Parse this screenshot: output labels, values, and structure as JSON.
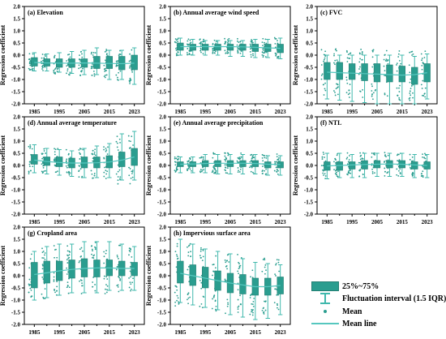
{
  "chart_data": [
    {
      "panel_label": "(a) Elevation",
      "type": "box",
      "y_label": "Regression coefficient",
      "ylim": [
        -2.0,
        2.0
      ],
      "x_tick_labels": [
        "1985",
        "1995",
        "2005",
        "2015",
        "2023"
      ],
      "boxes": [
        {
          "q1": -0.45,
          "median": -0.3,
          "q3": -0.1,
          "whisker_low": -0.65,
          "whisker_high": 0.1,
          "mean": -0.3
        },
        {
          "q1": -0.45,
          "median": -0.3,
          "q3": -0.15,
          "whisker_low": -0.65,
          "whisker_high": 0.05,
          "mean": -0.32
        },
        {
          "q1": -0.5,
          "median": -0.35,
          "q3": -0.15,
          "whisker_low": -0.7,
          "whisker_high": 0.1,
          "mean": -0.33
        },
        {
          "q1": -0.5,
          "median": -0.35,
          "q3": -0.15,
          "whisker_low": -0.75,
          "whisker_high": 0.15,
          "mean": -0.33
        },
        {
          "q1": -0.5,
          "median": -0.35,
          "q3": -0.15,
          "whisker_low": -0.8,
          "whisker_high": 0.2,
          "mean": -0.32
        },
        {
          "q1": -0.55,
          "median": -0.35,
          "q3": -0.05,
          "whisker_low": -0.8,
          "whisker_high": 0.3,
          "mean": -0.33
        },
        {
          "q1": -0.55,
          "median": -0.35,
          "q3": -0.05,
          "whisker_low": -1.0,
          "whisker_high": 0.2,
          "mean": -0.34
        },
        {
          "q1": -0.6,
          "median": -0.4,
          "q3": -0.05,
          "whisker_low": -1.0,
          "whisker_high": 0.2,
          "mean": -0.35
        },
        {
          "q1": -0.6,
          "median": -0.4,
          "q3": 0.0,
          "whisker_low": -1.2,
          "whisker_high": 0.3,
          "mean": -0.33
        }
      ]
    },
    {
      "panel_label": "(b) Annual average wind speed",
      "type": "box",
      "y_label": "Regression coefficient",
      "ylim": [
        -2.0,
        2.0
      ],
      "x_tick_labels": [
        "1985",
        "1995",
        "2005",
        "2015",
        "2023"
      ],
      "boxes": [
        {
          "q1": 0.2,
          "median": 0.35,
          "q3": 0.5,
          "whisker_low": 0.0,
          "whisker_high": 0.7,
          "mean": 0.35
        },
        {
          "q1": 0.2,
          "median": 0.35,
          "q3": 0.45,
          "whisker_low": 0.0,
          "whisker_high": 0.65,
          "mean": 0.35
        },
        {
          "q1": 0.2,
          "median": 0.35,
          "q3": 0.45,
          "whisker_low": 0.0,
          "whisker_high": 0.6,
          "mean": 0.35
        },
        {
          "q1": 0.2,
          "median": 0.35,
          "q3": 0.45,
          "whisker_low": 0.0,
          "whisker_high": 0.6,
          "mean": 0.35
        },
        {
          "q1": 0.2,
          "median": 0.35,
          "q3": 0.45,
          "whisker_low": -0.05,
          "whisker_high": 0.6,
          "mean": 0.35
        },
        {
          "q1": 0.2,
          "median": 0.35,
          "q3": 0.45,
          "whisker_low": -0.05,
          "whisker_high": 0.6,
          "mean": 0.34
        },
        {
          "q1": 0.15,
          "median": 0.3,
          "q3": 0.45,
          "whisker_low": -0.1,
          "whisker_high": 0.65,
          "mean": 0.32
        },
        {
          "q1": 0.15,
          "median": 0.3,
          "q3": 0.45,
          "whisker_low": -0.1,
          "whisker_high": 0.65,
          "mean": 0.3
        },
        {
          "q1": 0.1,
          "median": 0.3,
          "q3": 0.45,
          "whisker_low": -0.15,
          "whisker_high": 0.7,
          "mean": 0.28
        }
      ]
    },
    {
      "panel_label": "(c) FVC",
      "type": "box",
      "y_label": "Regression coefficient",
      "ylim": [
        -2.0,
        2.0
      ],
      "x_tick_labels": [
        "1985",
        "1995",
        "2005",
        "2015",
        "2023"
      ],
      "boxes": [
        {
          "q1": -1.0,
          "median": -0.7,
          "q3": -0.3,
          "whisker_low": -1.8,
          "whisker_high": 0.0,
          "mean": -0.7
        },
        {
          "q1": -1.0,
          "median": -0.7,
          "q3": -0.3,
          "whisker_low": -1.85,
          "whisker_high": 0.0,
          "mean": -0.72
        },
        {
          "q1": -1.0,
          "median": -0.75,
          "q3": -0.35,
          "whisker_low": -1.9,
          "whisker_high": 0.0,
          "mean": -0.74
        },
        {
          "q1": -1.05,
          "median": -0.75,
          "q3": -0.35,
          "whisker_low": -1.95,
          "whisker_high": 0.0,
          "mean": -0.76
        },
        {
          "q1": -1.1,
          "median": -0.8,
          "q3": -0.35,
          "whisker_low": -2.0,
          "whisker_high": 0.0,
          "mean": -0.78
        },
        {
          "q1": -1.1,
          "median": -0.8,
          "q3": -0.4,
          "whisker_low": -2.0,
          "whisker_high": 0.0,
          "mean": -0.8
        },
        {
          "q1": -1.1,
          "median": -0.85,
          "q3": -0.45,
          "whisker_low": -2.0,
          "whisker_high": 0.0,
          "mean": -0.82
        },
        {
          "q1": -1.2,
          "median": -0.85,
          "q3": -0.5,
          "whisker_low": -2.0,
          "whisker_high": -0.05,
          "mean": -0.8
        },
        {
          "q1": -1.1,
          "median": -0.75,
          "q3": -0.35,
          "whisker_low": -1.8,
          "whisker_high": 0.05,
          "mean": -0.72
        }
      ]
    },
    {
      "panel_label": "(d) Annual average temperature",
      "type": "box",
      "y_label": "Regression coefficient",
      "ylim": [
        -2.0,
        2.0
      ],
      "x_tick_labels": [
        "1985",
        "1995",
        "2005",
        "2015",
        "2023"
      ],
      "boxes": [
        {
          "q1": 0.05,
          "median": 0.25,
          "q3": 0.45,
          "whisker_low": -0.3,
          "whisker_high": 0.85,
          "mean": 0.22
        },
        {
          "q1": 0.0,
          "median": 0.15,
          "q3": 0.35,
          "whisker_low": -0.35,
          "whisker_high": 0.7,
          "mean": 0.16
        },
        {
          "q1": -0.05,
          "median": 0.15,
          "q3": 0.35,
          "whisker_low": -0.4,
          "whisker_high": 0.65,
          "mean": 0.12
        },
        {
          "q1": -0.1,
          "median": 0.1,
          "q3": 0.3,
          "whisker_low": -0.45,
          "whisker_high": 0.6,
          "mean": 0.1
        },
        {
          "q1": -0.1,
          "median": 0.1,
          "q3": 0.35,
          "whisker_low": -0.5,
          "whisker_high": 0.7,
          "mean": 0.1
        },
        {
          "q1": -0.1,
          "median": 0.1,
          "q3": 0.35,
          "whisker_low": -0.5,
          "whisker_high": 0.8,
          "mean": 0.11
        },
        {
          "q1": -0.1,
          "median": 0.15,
          "q3": 0.4,
          "whisker_low": -0.5,
          "whisker_high": 0.9,
          "mean": 0.14
        },
        {
          "q1": -0.05,
          "median": 0.2,
          "q3": 0.55,
          "whisker_low": -0.6,
          "whisker_high": 1.3,
          "mean": 0.22
        },
        {
          "q1": 0.0,
          "median": 0.3,
          "q3": 0.7,
          "whisker_low": -0.6,
          "whisker_high": 1.4,
          "mean": 0.35
        }
      ]
    },
    {
      "panel_label": "(e) Annual average precipitation",
      "type": "box",
      "y_label": "Regression coefficient",
      "ylim": [
        -2.0,
        2.0
      ],
      "x_tick_labels": [
        "1985",
        "1995",
        "2005",
        "2015",
        "2023"
      ],
      "boxes": [
        {
          "q1": -0.05,
          "median": 0.05,
          "q3": 0.15,
          "whisker_low": -0.3,
          "whisker_high": 0.35,
          "mean": 0.05
        },
        {
          "q1": -0.05,
          "median": 0.05,
          "q3": 0.15,
          "whisker_low": -0.3,
          "whisker_high": 0.35,
          "mean": 0.06
        },
        {
          "q1": -0.05,
          "median": 0.1,
          "q3": 0.2,
          "whisker_low": -0.3,
          "whisker_high": 0.45,
          "mean": 0.08
        },
        {
          "q1": -0.05,
          "median": 0.1,
          "q3": 0.2,
          "whisker_low": -0.35,
          "whisker_high": 0.45,
          "mean": 0.09
        },
        {
          "q1": -0.05,
          "median": 0.1,
          "q3": 0.2,
          "whisker_low": -0.35,
          "whisker_high": 0.45,
          "mean": 0.09
        },
        {
          "q1": -0.05,
          "median": 0.1,
          "q3": 0.2,
          "whisker_low": -0.35,
          "whisker_high": 0.45,
          "mean": 0.09
        },
        {
          "q1": -0.05,
          "median": 0.05,
          "q3": 0.2,
          "whisker_low": -0.35,
          "whisker_high": 0.45,
          "mean": 0.08
        },
        {
          "q1": -0.1,
          "median": 0.05,
          "q3": 0.15,
          "whisker_low": -0.4,
          "whisker_high": 0.4,
          "mean": 0.05
        },
        {
          "q1": -0.1,
          "median": 0.05,
          "q3": 0.15,
          "whisker_low": -0.4,
          "whisker_high": 0.4,
          "mean": 0.04
        }
      ]
    },
    {
      "panel_label": "(f) NTL",
      "type": "box",
      "y_label": "Regression coefficient",
      "ylim": [
        -2.0,
        2.0
      ],
      "x_tick_labels": [
        "1985",
        "1995",
        "2005",
        "2015",
        "2023"
      ],
      "boxes": [
        {
          "q1": -0.2,
          "median": 0.0,
          "q3": 0.15,
          "whisker_low": -0.55,
          "whisker_high": 0.5,
          "mean": -0.02
        },
        {
          "q1": -0.2,
          "median": 0.0,
          "q3": 0.15,
          "whisker_low": -0.5,
          "whisker_high": 0.5,
          "mean": 0.0
        },
        {
          "q1": -0.15,
          "median": 0.05,
          "q3": 0.15,
          "whisker_low": -0.5,
          "whisker_high": 0.45,
          "mean": 0.02
        },
        {
          "q1": -0.15,
          "median": 0.05,
          "q3": 0.2,
          "whisker_low": -0.5,
          "whisker_high": 0.5,
          "mean": 0.04
        },
        {
          "q1": -0.1,
          "median": 0.05,
          "q3": 0.2,
          "whisker_low": -0.45,
          "whisker_high": 0.5,
          "mean": 0.05
        },
        {
          "q1": -0.1,
          "median": 0.05,
          "q3": 0.2,
          "whisker_low": -0.45,
          "whisker_high": 0.5,
          "mean": 0.06
        },
        {
          "q1": -0.1,
          "median": 0.05,
          "q3": 0.2,
          "whisker_low": -0.45,
          "whisker_high": 0.5,
          "mean": 0.05
        },
        {
          "q1": -0.15,
          "median": 0.0,
          "q3": 0.15,
          "whisker_low": -0.5,
          "whisker_high": 0.45,
          "mean": 0.02
        },
        {
          "q1": -0.15,
          "median": 0.0,
          "q3": 0.15,
          "whisker_low": -0.5,
          "whisker_high": 0.45,
          "mean": 0.0
        }
      ]
    },
    {
      "panel_label": "(g) Cropland area",
      "type": "box",
      "y_label": "Regression coefficient",
      "ylim": [
        -2.0,
        2.0
      ],
      "x_tick_labels": [
        "1985",
        "1995",
        "2005",
        "2015",
        "2023"
      ],
      "boxes": [
        {
          "q1": -0.5,
          "median": 0.05,
          "q3": 0.55,
          "whisker_low": -1.0,
          "whisker_high": 1.0,
          "mean": 0.05
        },
        {
          "q1": -0.3,
          "median": 0.15,
          "q3": 0.6,
          "whisker_low": -0.9,
          "whisker_high": 1.2,
          "mean": 0.12
        },
        {
          "q1": -0.2,
          "median": 0.2,
          "q3": 0.6,
          "whisker_low": -0.8,
          "whisker_high": 1.3,
          "mean": 0.2
        },
        {
          "q1": -0.1,
          "median": 0.25,
          "q3": 0.65,
          "whisker_low": -0.7,
          "whisker_high": 1.3,
          "mean": 0.26
        },
        {
          "q1": -0.05,
          "median": 0.3,
          "q3": 0.7,
          "whisker_low": -0.7,
          "whisker_high": 1.4,
          "mean": 0.3
        },
        {
          "q1": -0.05,
          "median": 0.3,
          "q3": 0.65,
          "whisker_low": -0.7,
          "whisker_high": 1.4,
          "mean": 0.32
        },
        {
          "q1": 0.0,
          "median": 0.3,
          "q3": 0.65,
          "whisker_low": -0.6,
          "whisker_high": 1.4,
          "mean": 0.32
        },
        {
          "q1": 0.0,
          "median": 0.3,
          "q3": 0.6,
          "whisker_low": -0.6,
          "whisker_high": 1.3,
          "mean": 0.3
        },
        {
          "q1": 0.0,
          "median": 0.3,
          "q3": 0.55,
          "whisker_low": -0.6,
          "whisker_high": 1.2,
          "mean": 0.3
        }
      ]
    },
    {
      "panel_label": "(h) Impervious surface area",
      "type": "box",
      "y_label": "Regression coefficient",
      "ylim": [
        -2.0,
        2.0
      ],
      "x_tick_labels": [
        "1985",
        "1995",
        "2005",
        "2015",
        "2023"
      ],
      "boxes": [
        {
          "q1": -0.3,
          "median": 0.1,
          "q3": 0.6,
          "whisker_low": -1.1,
          "whisker_high": 1.5,
          "mean": 0.1
        },
        {
          "q1": -0.4,
          "median": 0.0,
          "q3": 0.45,
          "whisker_low": -1.2,
          "whisker_high": 1.3,
          "mean": 0.0
        },
        {
          "q1": -0.5,
          "median": -0.1,
          "q3": 0.35,
          "whisker_low": -1.3,
          "whisker_high": 1.1,
          "mean": -0.1
        },
        {
          "q1": -0.6,
          "median": -0.2,
          "q3": 0.2,
          "whisker_low": -1.4,
          "whisker_high": 1.0,
          "mean": -0.2
        },
        {
          "q1": -0.7,
          "median": -0.3,
          "q3": 0.1,
          "whisker_low": -1.6,
          "whisker_high": 0.9,
          "mean": -0.3
        },
        {
          "q1": -0.75,
          "median": -0.35,
          "q3": 0.05,
          "whisker_low": -1.7,
          "whisker_high": 0.7,
          "mean": -0.38
        },
        {
          "q1": -0.8,
          "median": -0.45,
          "q3": -0.1,
          "whisker_low": -1.8,
          "whisker_high": 0.55,
          "mean": -0.45
        },
        {
          "q1": -0.8,
          "median": -0.45,
          "q3": -0.1,
          "whisker_low": -1.75,
          "whisker_high": 0.5,
          "mean": -0.45
        },
        {
          "q1": -0.75,
          "median": -0.4,
          "q3": -0.05,
          "whisker_low": -1.6,
          "whisker_high": 0.45,
          "mean": -0.4
        }
      ]
    }
  ],
  "y_tick_labels": [
    "-2.0",
    "-1.5",
    "-1.0",
    "-0.5",
    "0.0",
    "0.5",
    "1.0",
    "1.5",
    "2.0"
  ],
  "colors": {
    "box_fill": "#2a9d8f",
    "box_edge": "#247f73",
    "whisker": "#3fb8ac",
    "mean_line": "#56c7bf",
    "points": "#2a9d8f",
    "axis": "#000000"
  },
  "legend": {
    "items": [
      {
        "label": "25%~75%",
        "symbol": "box"
      },
      {
        "label": "Fluctuation interval (1.5 IQR)",
        "symbol": "whisker"
      },
      {
        "label": "Mean",
        "symbol": "point"
      },
      {
        "label": "Mean line",
        "symbol": "line"
      }
    ]
  }
}
